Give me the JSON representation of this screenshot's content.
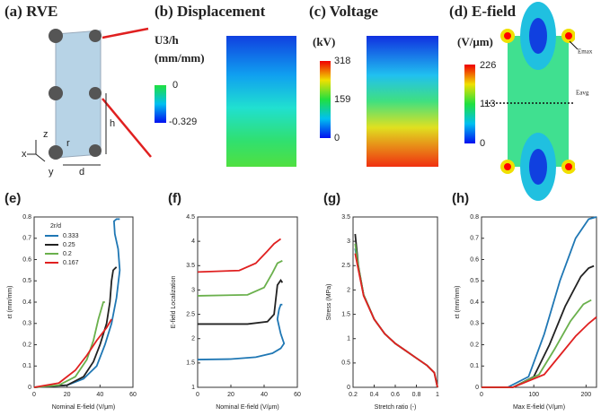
{
  "panels": {
    "a": {
      "label": "(a) RVE",
      "axes": {
        "z": "z",
        "x": "x",
        "y": "y"
      },
      "dims": {
        "r": "r",
        "h": "h",
        "d": "d"
      }
    },
    "b": {
      "label": "(b) Displacement",
      "unit_top": "U3/h",
      "unit": "(mm/mm)",
      "ticks": [
        0,
        -0.329
      ]
    },
    "c": {
      "label": "(c) Voltage",
      "unit": "(kV)",
      "ticks": [
        318,
        159,
        0
      ]
    },
    "d": {
      "label": "(d) E-field",
      "unit": "(V/μm)",
      "ticks": [
        226,
        113,
        0
      ],
      "emax": "Emax",
      "eavg": "Eavg"
    }
  },
  "chart_data": [
    {
      "type": "line",
      "panel_label": "(e)",
      "xlabel": "Nominal E-field (V/μm)",
      "ylabel": "εt (mm/mm)",
      "xlim": [
        0,
        60
      ],
      "xticks": [
        0,
        20,
        40,
        60
      ],
      "ylim": [
        0,
        0.8
      ],
      "yticks": [
        0,
        0.1,
        0.2,
        0.3,
        0.4,
        0.5,
        0.6,
        0.7,
        0.8
      ],
      "legend_title": "2r/d",
      "legend": "upper left",
      "series": [
        {
          "name": "0.333",
          "color": "#1f77b4",
          "x": [
            0,
            20,
            30,
            38,
            43,
            47,
            50,
            52,
            51,
            49,
            48.5,
            50,
            52
          ],
          "values": [
            0,
            0.01,
            0.04,
            0.1,
            0.2,
            0.3,
            0.42,
            0.55,
            0.65,
            0.72,
            0.78,
            0.79,
            0.79
          ]
        },
        {
          "name": "0.25",
          "color": "#222222",
          "x": [
            0,
            20,
            30,
            36,
            40,
            44,
            46,
            47,
            48,
            50
          ],
          "values": [
            0,
            0.01,
            0.05,
            0.12,
            0.2,
            0.3,
            0.4,
            0.5,
            0.55,
            0.565
          ]
        },
        {
          "name": "0.2",
          "color": "#6ab04c",
          "x": [
            0,
            15,
            25,
            32,
            36,
            39,
            42,
            43
          ],
          "values": [
            0,
            0.01,
            0.05,
            0.13,
            0.22,
            0.32,
            0.4,
            0.4
          ]
        },
        {
          "name": "0.167",
          "color": "#e02020",
          "x": [
            0,
            15,
            25,
            32,
            38,
            44,
            47
          ],
          "values": [
            0,
            0.02,
            0.08,
            0.15,
            0.22,
            0.28,
            0.32
          ]
        }
      ]
    },
    {
      "type": "line",
      "panel_label": "(f)",
      "xlabel": "Nominal E-field (V/μm)",
      "ylabel": "E-field Localization",
      "xlim": [
        0,
        60
      ],
      "xticks": [
        0,
        20,
        40,
        60
      ],
      "ylim": [
        1,
        4.5
      ],
      "yticks": [
        1,
        1.5,
        2,
        2.5,
        3,
        3.5,
        4,
        4.5
      ],
      "series": [
        {
          "color": "#1f77b4",
          "x": [
            0,
            20,
            35,
            45,
            50,
            52,
            50,
            48,
            49,
            50,
            51
          ],
          "values": [
            1.57,
            1.58,
            1.62,
            1.7,
            1.8,
            1.9,
            2.1,
            2.4,
            2.6,
            2.7,
            2.7
          ]
        },
        {
          "color": "#222222",
          "x": [
            0,
            30,
            42,
            46,
            47,
            48,
            50,
            51
          ],
          "values": [
            2.3,
            2.3,
            2.35,
            2.5,
            2.8,
            3.1,
            3.2,
            3.15
          ]
        },
        {
          "color": "#6ab04c",
          "x": [
            0,
            30,
            40,
            45,
            48,
            51
          ],
          "values": [
            2.88,
            2.9,
            3.05,
            3.35,
            3.55,
            3.6
          ]
        },
        {
          "color": "#e02020",
          "x": [
            0,
            25,
            35,
            42,
            46,
            50
          ],
          "values": [
            3.37,
            3.4,
            3.55,
            3.8,
            3.95,
            4.05
          ]
        }
      ]
    },
    {
      "type": "line",
      "panel_label": "(g)",
      "xlabel": "Stretch ratio (-)",
      "ylabel": "Stress (MPa)",
      "xlim": [
        0.2,
        1
      ],
      "xticks": [
        0.2,
        0.4,
        0.6,
        0.8,
        1
      ],
      "ylim": [
        0,
        3.5
      ],
      "yticks": [
        0,
        0.5,
        1,
        1.5,
        2,
        2.5,
        3,
        3.5
      ],
      "series": [
        {
          "color": "#1f77b4",
          "x": [
            0.22,
            0.25,
            0.3,
            0.4,
            0.5,
            0.6,
            0.7,
            0.8,
            0.9,
            0.97,
            1
          ],
          "values": [
            2.85,
            2.45,
            1.9,
            1.4,
            1.1,
            0.9,
            0.75,
            0.6,
            0.45,
            0.3,
            0
          ]
        },
        {
          "color": "#222222",
          "x": [
            0.22,
            0.25,
            0.3,
            0.4,
            0.5,
            0.6,
            0.7,
            0.8,
            0.9,
            0.97,
            1
          ],
          "values": [
            3.15,
            2.5,
            1.9,
            1.4,
            1.1,
            0.9,
            0.75,
            0.6,
            0.45,
            0.3,
            0
          ]
        },
        {
          "color": "#6ab04c",
          "x": [
            0.22,
            0.25,
            0.3,
            0.4,
            0.5,
            0.6,
            0.7,
            0.8,
            0.9,
            0.97,
            1
          ],
          "values": [
            2.95,
            2.48,
            1.9,
            1.4,
            1.1,
            0.9,
            0.75,
            0.6,
            0.45,
            0.3,
            0
          ]
        },
        {
          "color": "#e02020",
          "x": [
            0.22,
            0.25,
            0.3,
            0.4,
            0.5,
            0.6,
            0.7,
            0.8,
            0.9,
            0.97,
            1
          ],
          "values": [
            2.75,
            2.42,
            1.88,
            1.4,
            1.1,
            0.9,
            0.75,
            0.6,
            0.45,
            0.3,
            0
          ]
        }
      ]
    },
    {
      "type": "line",
      "panel_label": "(h)",
      "xlabel": "Max E-field (V/μm)",
      "ylabel": "εt (mm/mm)",
      "xlim": [
        0,
        220
      ],
      "xticks": [
        0,
        100,
        200
      ],
      "ylim": [
        0,
        0.8
      ],
      "yticks": [
        0,
        0.1,
        0.2,
        0.3,
        0.4,
        0.5,
        0.6,
        0.7,
        0.8
      ],
      "series": [
        {
          "color": "#1f77b4",
          "x": [
            0,
            50,
            90,
            120,
            150,
            180,
            205,
            220
          ],
          "values": [
            0,
            0,
            0.05,
            0.25,
            0.5,
            0.7,
            0.79,
            0.8
          ]
        },
        {
          "color": "#222222",
          "x": [
            0,
            60,
            100,
            130,
            160,
            190,
            205,
            215
          ],
          "values": [
            0,
            0,
            0.05,
            0.2,
            0.38,
            0.52,
            0.56,
            0.57
          ]
        },
        {
          "color": "#6ab04c",
          "x": [
            0,
            60,
            110,
            140,
            170,
            195,
            210
          ],
          "values": [
            0,
            0,
            0.06,
            0.18,
            0.31,
            0.39,
            0.41
          ]
        },
        {
          "color": "#e02020",
          "x": [
            0,
            60,
            120,
            150,
            180,
            205,
            220
          ],
          "values": [
            0,
            0,
            0.06,
            0.15,
            0.24,
            0.3,
            0.33
          ]
        }
      ]
    }
  ]
}
